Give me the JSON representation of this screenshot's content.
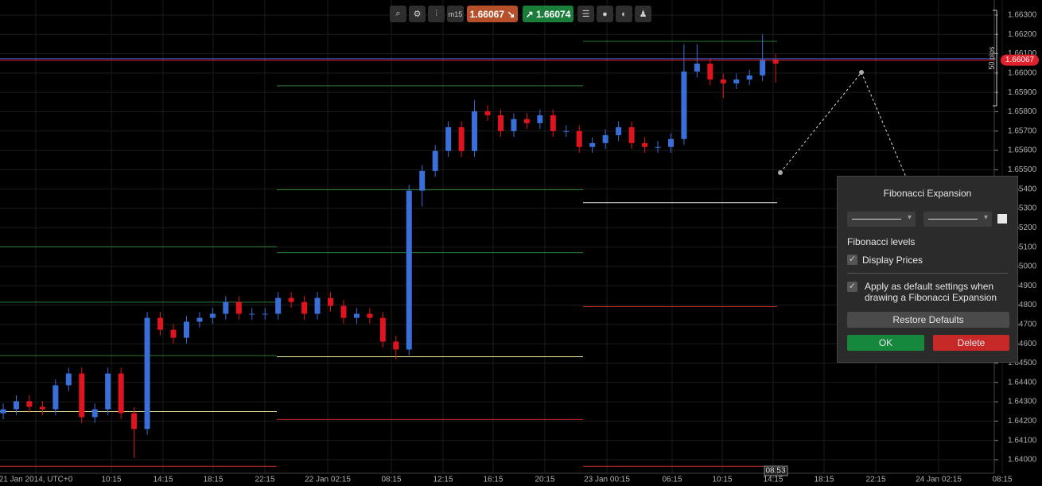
{
  "toolbar": {
    "timeframe": "m15"
  },
  "chart_data": {
    "type": "candlestick",
    "categories": [
      "21 Jan 2014, UTC+0",
      "10:15",
      "14:15",
      "18:15",
      "22:15",
      "22 Jan 02:15",
      "08:15",
      "12:15",
      "16:15",
      "20:15",
      "23 Jan 00:15",
      "06:15",
      "10:15",
      "14:15",
      "18:15",
      "22:15",
      "24 Jan 02:15",
      "08:15"
    ],
    "open": [
      1.6424,
      1.64261,
      1.64303,
      1.64274,
      1.64261,
      1.64385,
      1.64446,
      1.6422,
      1.64261,
      1.64446,
      1.64241,
      1.64159,
      1.64734,
      1.64672,
      1.64631,
      1.64714,
      1.64734,
      1.64755,
      1.64816,
      1.64755,
      1.64755,
      1.64755,
      1.64837,
      1.64816,
      1.64755,
      1.64837,
      1.64796,
      1.64734,
      1.64755,
      1.64734,
      1.64611,
      1.6457,
      1.65392,
      1.65494,
      1.65597,
      1.6572,
      1.65597,
      1.65803,
      1.65782,
      1.657,
      1.65762,
      1.65741,
      1.65782,
      1.657,
      1.657,
      1.65618,
      1.65638,
      1.65679,
      1.6572,
      1.65638,
      1.65618,
      1.65618,
      1.65659,
      1.66008,
      1.66049,
      1.65967,
      1.65947,
      1.65967,
      1.65988,
      1.6607
    ],
    "high": [
      1.64291,
      1.64333,
      1.64333,
      1.64304,
      1.64415,
      1.64476,
      1.64476,
      1.64291,
      1.64476,
      1.64476,
      1.64271,
      1.64764,
      1.64764,
      1.64702,
      1.64744,
      1.64764,
      1.64785,
      1.64846,
      1.64846,
      1.64785,
      1.64785,
      1.64867,
      1.64867,
      1.64846,
      1.64867,
      1.64867,
      1.64826,
      1.64785,
      1.64785,
      1.64764,
      1.64641,
      1.65422,
      1.65524,
      1.65627,
      1.6575,
      1.6575,
      1.6586,
      1.65833,
      1.65812,
      1.65792,
      1.65792,
      1.65812,
      1.65812,
      1.6573,
      1.6573,
      1.65668,
      1.65709,
      1.6575,
      1.6575,
      1.65668,
      1.65648,
      1.65689,
      1.6615,
      1.6615,
      1.66079,
      1.65997,
      1.65997,
      1.66018,
      1.662,
      1.661
    ],
    "low": [
      1.6421,
      1.64231,
      1.64244,
      1.64231,
      1.64231,
      1.64355,
      1.6419,
      1.6419,
      1.64231,
      1.64211,
      1.6401,
      1.64129,
      1.64642,
      1.64601,
      1.64601,
      1.64684,
      1.64704,
      1.64725,
      1.64725,
      1.64725,
      1.64725,
      1.64725,
      1.64786,
      1.64725,
      1.64725,
      1.64766,
      1.64704,
      1.64704,
      1.64704,
      1.64581,
      1.6452,
      1.6454,
      1.6531,
      1.65464,
      1.65567,
      1.65567,
      1.65567,
      1.65752,
      1.6567,
      1.6567,
      1.65711,
      1.65711,
      1.6567,
      1.6567,
      1.65588,
      1.65588,
      1.65608,
      1.65649,
      1.65608,
      1.65588,
      1.65588,
      1.65588,
      1.65629,
      1.65978,
      1.65937,
      1.6587,
      1.65917,
      1.65937,
      1.65958,
      1.6595
    ],
    "close": [
      1.64261,
      1.64303,
      1.64274,
      1.64261,
      1.64385,
      1.64446,
      1.6422,
      1.64261,
      1.64446,
      1.64241,
      1.64159,
      1.64734,
      1.64672,
      1.64631,
      1.64714,
      1.64734,
      1.64755,
      1.64816,
      1.64755,
      1.64755,
      1.64755,
      1.64837,
      1.64816,
      1.64755,
      1.64837,
      1.64796,
      1.64734,
      1.64755,
      1.64734,
      1.64611,
      1.6457,
      1.65392,
      1.65494,
      1.65597,
      1.6572,
      1.65597,
      1.65803,
      1.65782,
      1.657,
      1.65762,
      1.65741,
      1.65782,
      1.657,
      1.657,
      1.65618,
      1.65638,
      1.65679,
      1.6572,
      1.65638,
      1.65618,
      1.65618,
      1.65659,
      1.66008,
      1.66049,
      1.65967,
      1.65947,
      1.65967,
      1.65988,
      1.6607,
      1.66049
    ],
    "up_color": "#3a6fd8",
    "down_color": "#e0141e",
    "ylim": [
      1.6393,
      1.66378
    ],
    "yticks": [
      {
        "value": 1.64,
        "label": "1.64000"
      },
      {
        "value": 1.641,
        "label": "1.64100"
      },
      {
        "value": 1.642,
        "label": "1.64200"
      },
      {
        "value": 1.643,
        "label": "1.64300"
      },
      {
        "value": 1.644,
        "label": "1.64400"
      },
      {
        "value": 1.645,
        "label": "1.64500"
      },
      {
        "value": 1.646,
        "label": "1.64600"
      },
      {
        "value": 1.647,
        "label": "1.64700"
      },
      {
        "value": 1.648,
        "label": "1.64800"
      },
      {
        "value": 1.649,
        "label": "1.64900"
      },
      {
        "value": 1.65,
        "label": "1.65000"
      },
      {
        "value": 1.651,
        "label": "1.65100"
      },
      {
        "value": 1.652,
        "label": "1.65200"
      },
      {
        "value": 1.653,
        "label": "1.65300"
      },
      {
        "value": 1.654,
        "label": "1.65400"
      },
      {
        "value": 1.655,
        "label": "1.65500"
      },
      {
        "value": 1.656,
        "label": "1.65600"
      },
      {
        "value": 1.657,
        "label": "1.65700"
      },
      {
        "value": 1.658,
        "label": "1.65800"
      },
      {
        "value": 1.659,
        "label": "1.65900"
      },
      {
        "value": 1.66,
        "label": "1.66000"
      },
      {
        "value": 1.661,
        "label": "1.66100"
      },
      {
        "value": 1.662,
        "label": "1.66200"
      },
      {
        "value": 1.663,
        "label": "1.66300"
      }
    ],
    "grid": true,
    "bid": 1.66067,
    "ask": 1.66074,
    "range_label": "50 pips",
    "cursor_time": "08:53",
    "pivots": [
      {
        "levels": [
          {
            "value": 1.65102,
            "color": "#2e7d32"
          },
          {
            "value": 1.64815,
            "color": "#2e7d32"
          },
          {
            "value": 1.64539,
            "color": "#2e7d32"
          },
          {
            "value": 1.64249,
            "color": "#f5f0a0"
          },
          {
            "value": 1.63966,
            "color": "#c62828"
          }
        ]
      },
      {
        "levels": [
          {
            "value": 1.65934,
            "color": "#2e7d32"
          },
          {
            "value": 1.65396,
            "color": "#2e7d32"
          },
          {
            "value": 1.65071,
            "color": "#2e7d32"
          },
          {
            "value": 1.64533,
            "color": "#f5f0a0"
          },
          {
            "value": 1.64208,
            "color": "#c62828"
          }
        ]
      },
      {
        "levels": [
          {
            "value": 1.66164,
            "color": "#2e7d32"
          },
          {
            "value": 1.6533,
            "color": "#f0f0f0"
          },
          {
            "value": 1.64792,
            "color": "#c62828"
          },
          {
            "value": 1.63966,
            "color": "#c62828"
          }
        ]
      }
    ]
  },
  "dialog": {
    "title": "Fibonacci Expansion",
    "levels_heading": "Fibonacci levels",
    "display_prices": {
      "label": "Display Prices",
      "checked": true
    },
    "apply_default": {
      "label": "Apply as default settings when drawing a Fibonacci Expansion",
      "checked": true
    },
    "restore": "Restore Defaults",
    "ok": "OK",
    "delete": "Delete"
  }
}
